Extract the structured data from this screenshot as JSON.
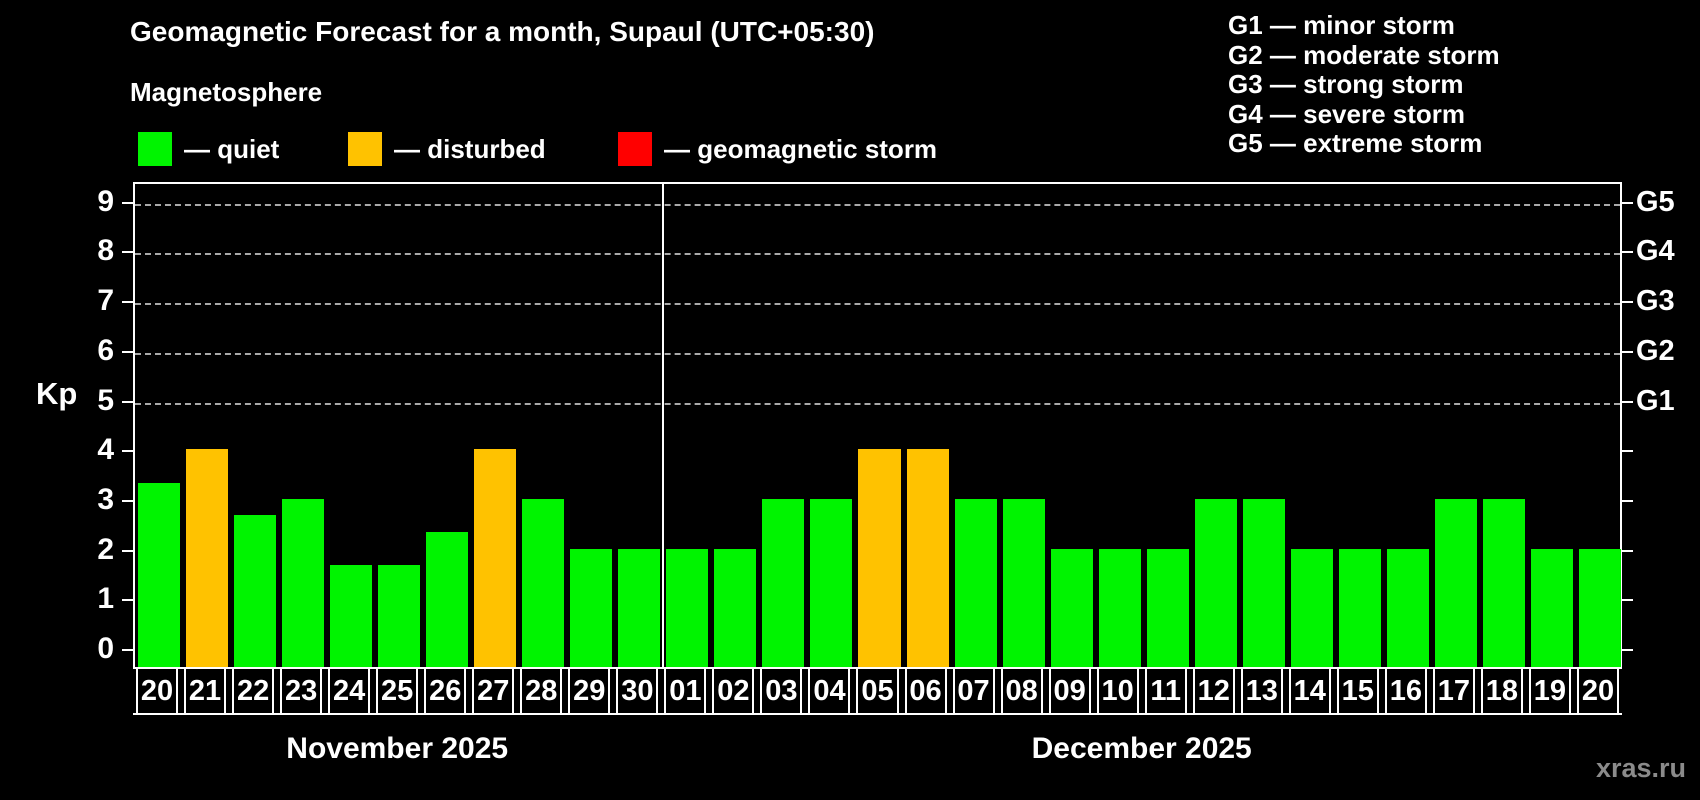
{
  "title": "Geomagnetic Forecast for a month, Supaul (UTC+05:30)",
  "subtitle": "Magnetosphere",
  "watermark": "xras.ru",
  "colors": {
    "background": "#000000",
    "quiet": "#00f400",
    "disturbed": "#ffc200",
    "storm": "#ff0000",
    "axis": "#ffffff",
    "grid": "#aaaaaa",
    "watermark": "#8b8b8b"
  },
  "legend": [
    {
      "key": "quiet",
      "label": "— quiet"
    },
    {
      "key": "disturbed",
      "label": "— disturbed"
    },
    {
      "key": "storm",
      "label": "— geomagnetic storm"
    }
  ],
  "g_legend": [
    "G1 — minor storm",
    "G2 — moderate storm",
    "G3 — strong storm",
    "G4 — severe storm",
    "G5 — extreme storm"
  ],
  "chart_data": {
    "type": "bar",
    "ylabel": "Kp",
    "ylim": [
      0,
      9
    ],
    "yticks": [
      0,
      1,
      2,
      3,
      4,
      5,
      6,
      7,
      8,
      9
    ],
    "grid_dashed_at_kp": [
      5,
      6,
      7,
      8,
      9
    ],
    "right_axis": [
      {
        "label": "G1",
        "kp": 5
      },
      {
        "label": "G2",
        "kp": 6
      },
      {
        "label": "G3",
        "kp": 7
      },
      {
        "label": "G4",
        "kp": 8
      },
      {
        "label": "G5",
        "kp": 9
      }
    ],
    "legend_position": "top-left",
    "grid": "dashed-storm-levels-only",
    "months": [
      {
        "label": "November 2025",
        "days": [
          {
            "day": "20",
            "kp": 3.33,
            "status": "quiet"
          },
          {
            "day": "21",
            "kp": 4,
            "status": "disturbed"
          },
          {
            "day": "22",
            "kp": 2.67,
            "status": "quiet"
          },
          {
            "day": "23",
            "kp": 3,
            "status": "quiet"
          },
          {
            "day": "24",
            "kp": 1.67,
            "status": "quiet"
          },
          {
            "day": "25",
            "kp": 1.67,
            "status": "quiet"
          },
          {
            "day": "26",
            "kp": 2.33,
            "status": "quiet"
          },
          {
            "day": "27",
            "kp": 4,
            "status": "disturbed"
          },
          {
            "day": "28",
            "kp": 3,
            "status": "quiet"
          },
          {
            "day": "29",
            "kp": 2,
            "status": "quiet"
          },
          {
            "day": "30",
            "kp": 2,
            "status": "quiet"
          }
        ]
      },
      {
        "label": "December 2025",
        "days": [
          {
            "day": "01",
            "kp": 2,
            "status": "quiet"
          },
          {
            "day": "02",
            "kp": 2,
            "status": "quiet"
          },
          {
            "day": "03",
            "kp": 3,
            "status": "quiet"
          },
          {
            "day": "04",
            "kp": 3,
            "status": "quiet"
          },
          {
            "day": "05",
            "kp": 4,
            "status": "disturbed"
          },
          {
            "day": "06",
            "kp": 4,
            "status": "disturbed"
          },
          {
            "day": "07",
            "kp": 3,
            "status": "quiet"
          },
          {
            "day": "08",
            "kp": 3,
            "status": "quiet"
          },
          {
            "day": "09",
            "kp": 2,
            "status": "quiet"
          },
          {
            "day": "10",
            "kp": 2,
            "status": "quiet"
          },
          {
            "day": "11",
            "kp": 2,
            "status": "quiet"
          },
          {
            "day": "12",
            "kp": 3,
            "status": "quiet"
          },
          {
            "day": "13",
            "kp": 3,
            "status": "quiet"
          },
          {
            "day": "14",
            "kp": 2,
            "status": "quiet"
          },
          {
            "day": "15",
            "kp": 2,
            "status": "quiet"
          },
          {
            "day": "16",
            "kp": 2,
            "status": "quiet"
          },
          {
            "day": "17",
            "kp": 3,
            "status": "quiet"
          },
          {
            "day": "18",
            "kp": 3,
            "status": "quiet"
          },
          {
            "day": "19",
            "kp": 2,
            "status": "quiet"
          },
          {
            "day": "20",
            "kp": 2,
            "status": "quiet"
          }
        ]
      }
    ]
  }
}
